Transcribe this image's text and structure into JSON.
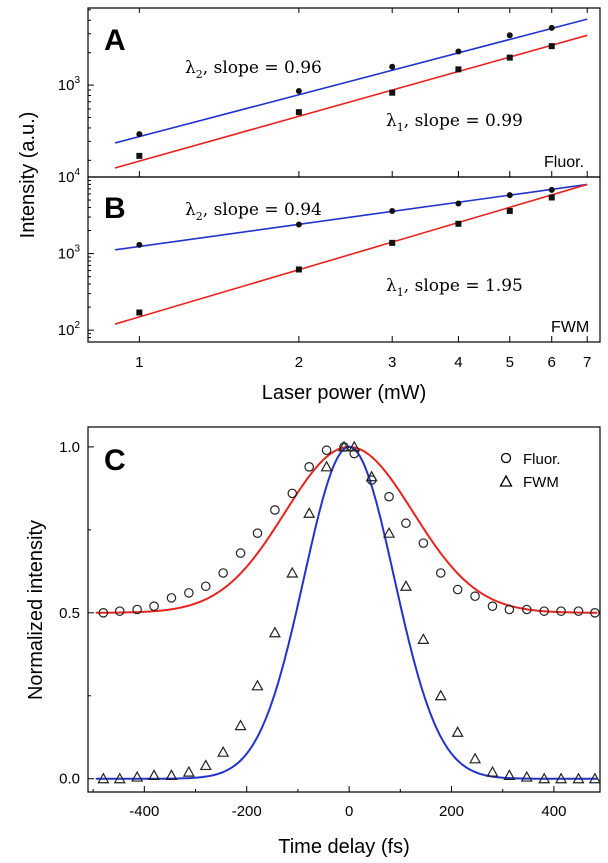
{
  "colors": {
    "red": "#e8231f",
    "blue": "#2233cc",
    "marker": "#111111"
  },
  "chart_data": [
    {
      "panel": "A",
      "type": "scatter",
      "xscale": "log",
      "yscale": "log",
      "xlim": [
        0.8,
        7.4
      ],
      "ylim": [
        140,
        5200
      ],
      "xticks": [
        1,
        2,
        3,
        4,
        5,
        6,
        7
      ],
      "yticks": [
        {
          "value": 1000,
          "base": "10",
          "exp": "3"
        }
      ],
      "tag": "Fluor.",
      "series": [
        {
          "key": "lambda2",
          "symbol": "λ",
          "sub": "2",
          "label_rest": ", slope = 0.96",
          "color": "blue",
          "x": [
            1,
            2,
            3,
            4,
            5,
            6
          ],
          "y": [
            350,
            880,
            1480,
            2050,
            2900,
            3400
          ],
          "fit_x": [
            0.9,
            7.0
          ],
          "fit_y": [
            290,
            4100
          ]
        },
        {
          "key": "lambda1",
          "symbol": "λ",
          "sub": "1",
          "label_rest": ", slope = 0.99",
          "color": "red",
          "x": [
            1,
            2,
            3,
            4,
            5,
            6
          ],
          "y": [
            220,
            560,
            850,
            1400,
            1800,
            2300
          ],
          "fit_x": [
            0.9,
            7.0
          ],
          "fit_y": [
            170,
            2900
          ]
        }
      ]
    },
    {
      "panel": "B",
      "type": "scatter",
      "xscale": "log",
      "yscale": "log",
      "xlim": [
        0.8,
        7.4
      ],
      "ylim": [
        70,
        10000
      ],
      "xticks": [
        1,
        2,
        3,
        4,
        5,
        6,
        7
      ],
      "yticks": [
        {
          "value": 100,
          "base": "10",
          "exp": "2"
        },
        {
          "value": 1000,
          "base": "10",
          "exp": "3"
        },
        {
          "value": 10000,
          "base": "10",
          "exp": "4"
        }
      ],
      "tag": "FWM",
      "series": [
        {
          "key": "lambda2",
          "symbol": "λ",
          "sub": "2",
          "label_rest": ", slope = 0.94",
          "color": "blue",
          "x": [
            1,
            2,
            3,
            4,
            5,
            6
          ],
          "y": [
            1300,
            2400,
            3600,
            4500,
            5800,
            6800
          ],
          "fit_x": [
            0.9,
            7.0
          ],
          "fit_y": [
            1120,
            8000
          ]
        },
        {
          "key": "lambda1",
          "symbol": "λ",
          "sub": "1",
          "label_rest": ", slope = 1.95",
          "color": "red",
          "x": [
            1,
            2,
            3,
            4,
            5,
            6
          ],
          "y": [
            170,
            620,
            1380,
            2450,
            3600,
            5400
          ],
          "fit_x": [
            0.9,
            7.0
          ],
          "fit_y": [
            120,
            8000
          ]
        }
      ]
    },
    {
      "panel": "C",
      "type": "scatter",
      "xscale": "linear",
      "yscale": "linear",
      "xlim": [
        -510,
        490
      ],
      "ylim": [
        -0.04,
        1.06
      ],
      "xticks": [
        -400,
        -200,
        0,
        200,
        400
      ],
      "yticks": [
        0.0,
        0.5,
        1.0
      ],
      "ytick_labels": [
        "0.0",
        "0.5",
        "1.0"
      ],
      "xlabel": "Time delay (fs)",
      "ylabel": "Normalized intensity",
      "series": [
        {
          "key": "fluor",
          "name": "Fluor.",
          "marker": "circle",
          "color": "red",
          "x": [
            -480,
            -448,
            -414,
            -381,
            -347,
            -313,
            -280,
            -246,
            -212,
            -179,
            -145,
            -111,
            -78,
            -44,
            -10,
            10,
            44,
            78,
            111,
            145,
            179,
            212,
            246,
            280,
            313,
            347,
            381,
            414,
            448,
            480
          ],
          "y": [
            0.5,
            0.505,
            0.51,
            0.52,
            0.545,
            0.56,
            0.58,
            0.62,
            0.68,
            0.74,
            0.81,
            0.86,
            0.94,
            0.99,
            1.0,
            0.98,
            0.9,
            0.85,
            0.77,
            0.71,
            0.62,
            0.57,
            0.55,
            0.52,
            0.51,
            0.51,
            0.505,
            0.505,
            0.505,
            0.5
          ]
        },
        {
          "key": "fwm",
          "name": "FWM",
          "marker": "triangle",
          "color": "blue",
          "x": [
            -480,
            -448,
            -414,
            -381,
            -347,
            -313,
            -280,
            -246,
            -212,
            -179,
            -145,
            -111,
            -78,
            -44,
            -10,
            10,
            44,
            78,
            111,
            145,
            179,
            212,
            246,
            280,
            313,
            347,
            381,
            414,
            448,
            480
          ],
          "y": [
            0.0,
            0.0,
            0.005,
            0.01,
            0.01,
            0.02,
            0.04,
            0.08,
            0.16,
            0.28,
            0.44,
            0.62,
            0.8,
            0.94,
            1.0,
            1.0,
            0.91,
            0.74,
            0.58,
            0.42,
            0.25,
            0.14,
            0.06,
            0.02,
            0.01,
            0.005,
            0.0,
            0.0,
            0.0,
            0.0
          ]
        }
      ],
      "fits": [
        {
          "key": "fluor-fit",
          "color": "red",
          "shape": "gaussian",
          "offset": 0.5,
          "amplitude": 0.5,
          "center": 0,
          "sigma": 125
        },
        {
          "key": "fwm-fit",
          "color": "blue",
          "shape": "gaussian",
          "offset": 0.0,
          "amplitude": 1.0,
          "center": 0,
          "sigma": 88
        }
      ]
    }
  ],
  "shared": {
    "xlabel_ab": "Laser power (mW)",
    "ylabel_ab": "Intensity (a.u.)"
  }
}
